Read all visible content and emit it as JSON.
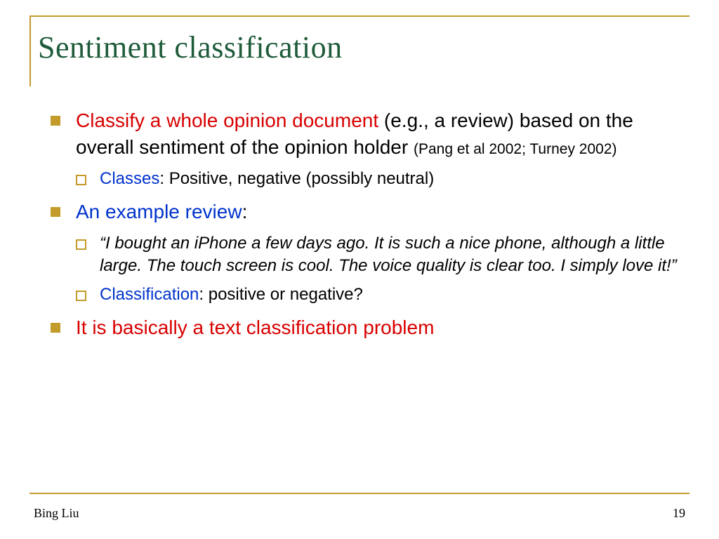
{
  "colors": {
    "accent": "#c29b2a",
    "title": "#1f5b3a",
    "red": "#d80000",
    "blue": "#0033cc",
    "text": "#000000",
    "background": "#ffffff"
  },
  "typography": {
    "title_family": "Garamond",
    "title_size_pt": 33,
    "body_family": "Arial",
    "level1_size_pt": 21,
    "level2_size_pt": 18,
    "citation_size_pt": 16,
    "footer_size_pt": 13
  },
  "title": "Sentiment classification",
  "bullets": [
    {
      "lead_red": "Classify a whole opinion document ",
      "rest": "(e.g., a review) based on the overall sentiment of the opinion holder ",
      "citation": "(Pang et al 2002; Turney 2002)",
      "children": [
        {
          "blue_lead": "Classes",
          "rest": ": Positive, negative (possibly neutral)",
          "italic": false
        }
      ]
    },
    {
      "blue_lead": "An example review",
      "rest": ":",
      "children": [
        {
          "rest": "“I bought an iPhone a few days ago. It is such a nice phone, although a little large. The touch screen is cool. The voice quality is clear too. I simply love it!”",
          "italic": true
        },
        {
          "blue_lead": "Classification",
          "rest": ": positive or negative?",
          "italic": false
        }
      ]
    },
    {
      "all_red": "It is basically a text classification problem"
    }
  ],
  "footer": {
    "author": "Bing Liu",
    "page": "19"
  }
}
